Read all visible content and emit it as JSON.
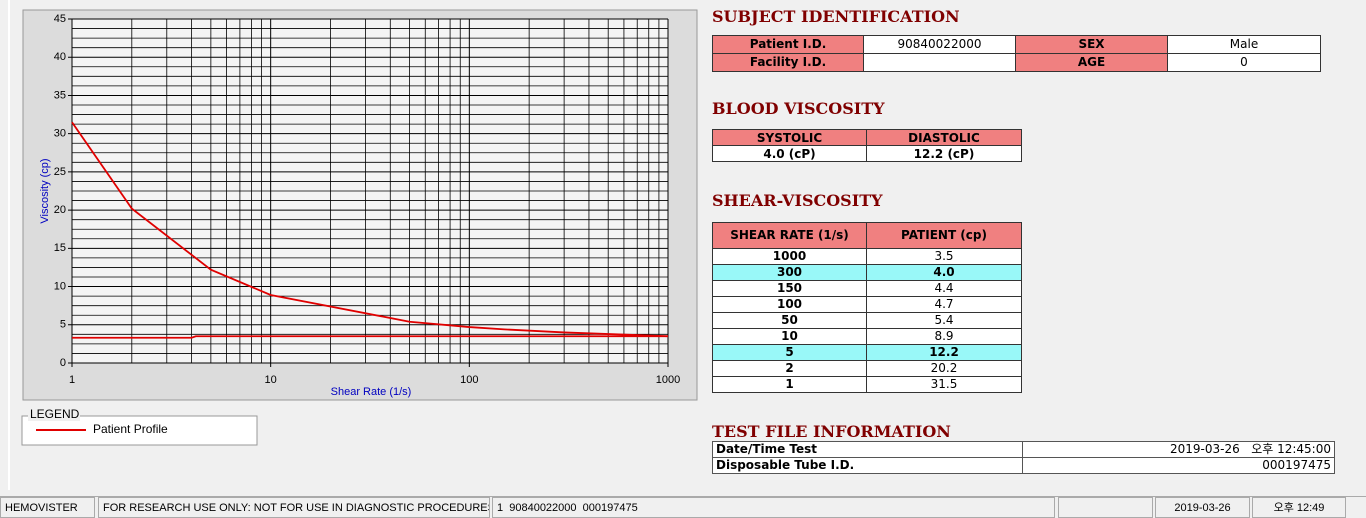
{
  "chart_data": {
    "type": "line",
    "x_label": "Shear Rate (1/s)",
    "y_label": "Viscosity (cp)",
    "log_x": true,
    "grid": true,
    "xlim": [
      1,
      1000
    ],
    "ylim": [
      0,
      45
    ],
    "xticks": [
      1,
      10,
      100,
      1000
    ],
    "yticks": [
      0,
      5,
      10,
      15,
      20,
      25,
      30,
      35,
      40,
      45
    ],
    "x_minor_ticks": [
      2,
      3,
      4,
      5,
      6,
      7,
      8,
      9,
      20,
      30,
      40,
      50,
      60,
      70,
      80,
      90,
      200,
      300,
      400,
      500,
      600,
      700,
      800,
      900
    ],
    "y_minor_ticks": [
      1.25,
      2.5,
      3.75,
      6.25,
      7.5,
      8.75,
      11.25,
      12.5,
      13.75,
      16.25,
      17.5,
      18.75,
      21.25,
      22.5,
      23.75,
      26.25,
      27.5,
      28.75,
      31.25,
      32.5,
      33.75,
      36.25,
      37.5,
      38.75,
      41.25,
      42.5,
      43.75
    ],
    "series": [
      {
        "name": "Patient Profile",
        "color": "#e00000",
        "x": [
          1,
          2,
          5,
          10,
          50,
          100,
          150,
          300,
          1000
        ],
        "values": [
          31.5,
          20.2,
          12.2,
          8.9,
          5.4,
          4.7,
          4.4,
          4.0,
          3.5
        ]
      },
      {
        "color": "#e00000",
        "x": [
          1,
          4,
          4.2,
          1000
        ],
        "values": [
          3.3,
          3.3,
          3.5,
          3.5
        ]
      }
    ]
  },
  "legend": {
    "title": "LEGEND"
  },
  "subject": {
    "title": "SUBJECT IDENTIFICATION",
    "rows": [
      [
        "Patient I.D.",
        "90840022000",
        "SEX",
        "Male"
      ],
      [
        "Facility I.D.",
        null,
        "AGE",
        "0"
      ]
    ]
  },
  "blood_viscosity": {
    "title": "BLOOD VISCOSITY",
    "headers": [
      "SYSTOLIC",
      "DIASTOLIC"
    ],
    "values": [
      "4.0 (cP)",
      "12.2 (cP)"
    ]
  },
  "shear_viscosity": {
    "title": "SHEAR-VISCOSITY",
    "headers": [
      "SHEAR RATE (1/s)",
      "PATIENT (cp)"
    ],
    "rows": [
      [
        "1000",
        "3.5"
      ],
      [
        "300",
        "4.0"
      ],
      [
        "150",
        "4.4"
      ],
      [
        "100",
        "4.7"
      ],
      [
        "50",
        "5.4"
      ],
      [
        "10",
        "8.9"
      ],
      [
        "5",
        "12.2"
      ],
      [
        "2",
        "20.2"
      ],
      [
        "1",
        "31.5"
      ]
    ],
    "highlighted_rows": [
      1,
      6
    ]
  },
  "test_file": {
    "title": "TEST FILE INFORMATION",
    "rows": [
      [
        "Date/Time Test",
        "2019-03-26   오후 12:45:00"
      ],
      [
        "Disposable Tube I.D.",
        "000197475"
      ]
    ]
  },
  "status_bar": [
    "HEMOVISTER",
    "FOR RESEARCH USE ONLY: NOT FOR USE IN DIAGNOSTIC PROCEDURES",
    "1  90840022000  000197475",
    "2019-03-26",
    "오후 12:49"
  ]
}
